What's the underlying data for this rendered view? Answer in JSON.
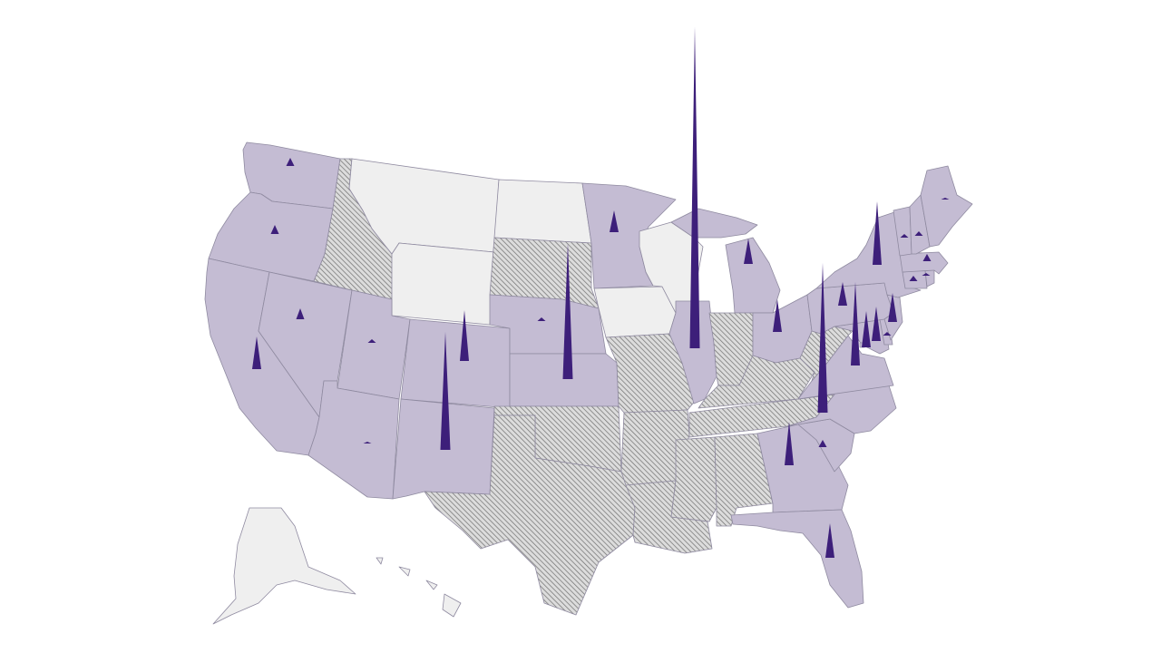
{
  "map": {
    "colors": {
      "background": "#ffffff",
      "category_purple": "#c4bcd3",
      "category_gray": "#efefef",
      "category_hatched": "#dcdcdc",
      "hatch_line": "#6f6f6f",
      "border": "#8f8aa0",
      "spike": "#3d1f7a"
    },
    "categories": {
      "purple": [
        "WA",
        "OR",
        "CA",
        "NV",
        "UT",
        "AZ",
        "CO",
        "NM",
        "NE",
        "KS",
        "MN",
        "IL",
        "MI",
        "OH",
        "PA",
        "NY",
        "VT",
        "NH",
        "ME",
        "MA",
        "RI",
        "CT",
        "NJ",
        "DE",
        "MD",
        "VA",
        "NC",
        "SC",
        "GA",
        "FL",
        "DC"
      ],
      "gray": [
        "MT",
        "WY",
        "ND",
        "WI",
        "IA",
        "AK",
        "HI"
      ],
      "hatched": [
        "ID",
        "SD",
        "TX",
        "OK",
        "MO",
        "AR",
        "LA",
        "MS",
        "AL",
        "TN",
        "KY",
        "IN",
        "WV"
      ]
    },
    "spikes": [
      {
        "state": "IL",
        "value": 355
      },
      {
        "state": "VA",
        "value": 165
      },
      {
        "state": "KS",
        "value": 150
      },
      {
        "state": "NM",
        "value": 130
      },
      {
        "state": "MD",
        "value": 92
      },
      {
        "state": "NY",
        "value": 70
      },
      {
        "state": "CO",
        "value": 56
      },
      {
        "state": "GA",
        "value": 48
      },
      {
        "state": "PA",
        "value": 40
      },
      {
        "state": "DE",
        "value": 38
      },
      {
        "state": "CA",
        "value": 36
      },
      {
        "state": "FL",
        "value": 38
      },
      {
        "state": "NJ",
        "value": 32
      },
      {
        "state": "MI",
        "value": 28
      },
      {
        "state": "OH",
        "value": 36
      },
      {
        "state": "WV",
        "value": 26
      },
      {
        "state": "MN",
        "value": 24
      },
      {
        "state": "NV",
        "value": 12
      },
      {
        "state": "OR",
        "value": 10
      },
      {
        "state": "WA",
        "value": 9
      },
      {
        "state": "SC",
        "value": 8
      },
      {
        "state": "MA",
        "value": 8
      },
      {
        "state": "CT",
        "value": 6
      },
      {
        "state": "NH",
        "value": 5
      },
      {
        "state": "UT",
        "value": 4
      },
      {
        "state": "NE",
        "value": 4
      },
      {
        "state": "DC",
        "value": 4
      },
      {
        "state": "VT",
        "value": 4
      },
      {
        "state": "RI",
        "value": 3
      },
      {
        "state": "ME",
        "value": 2
      },
      {
        "state": "AZ",
        "value": 2
      }
    ]
  }
}
